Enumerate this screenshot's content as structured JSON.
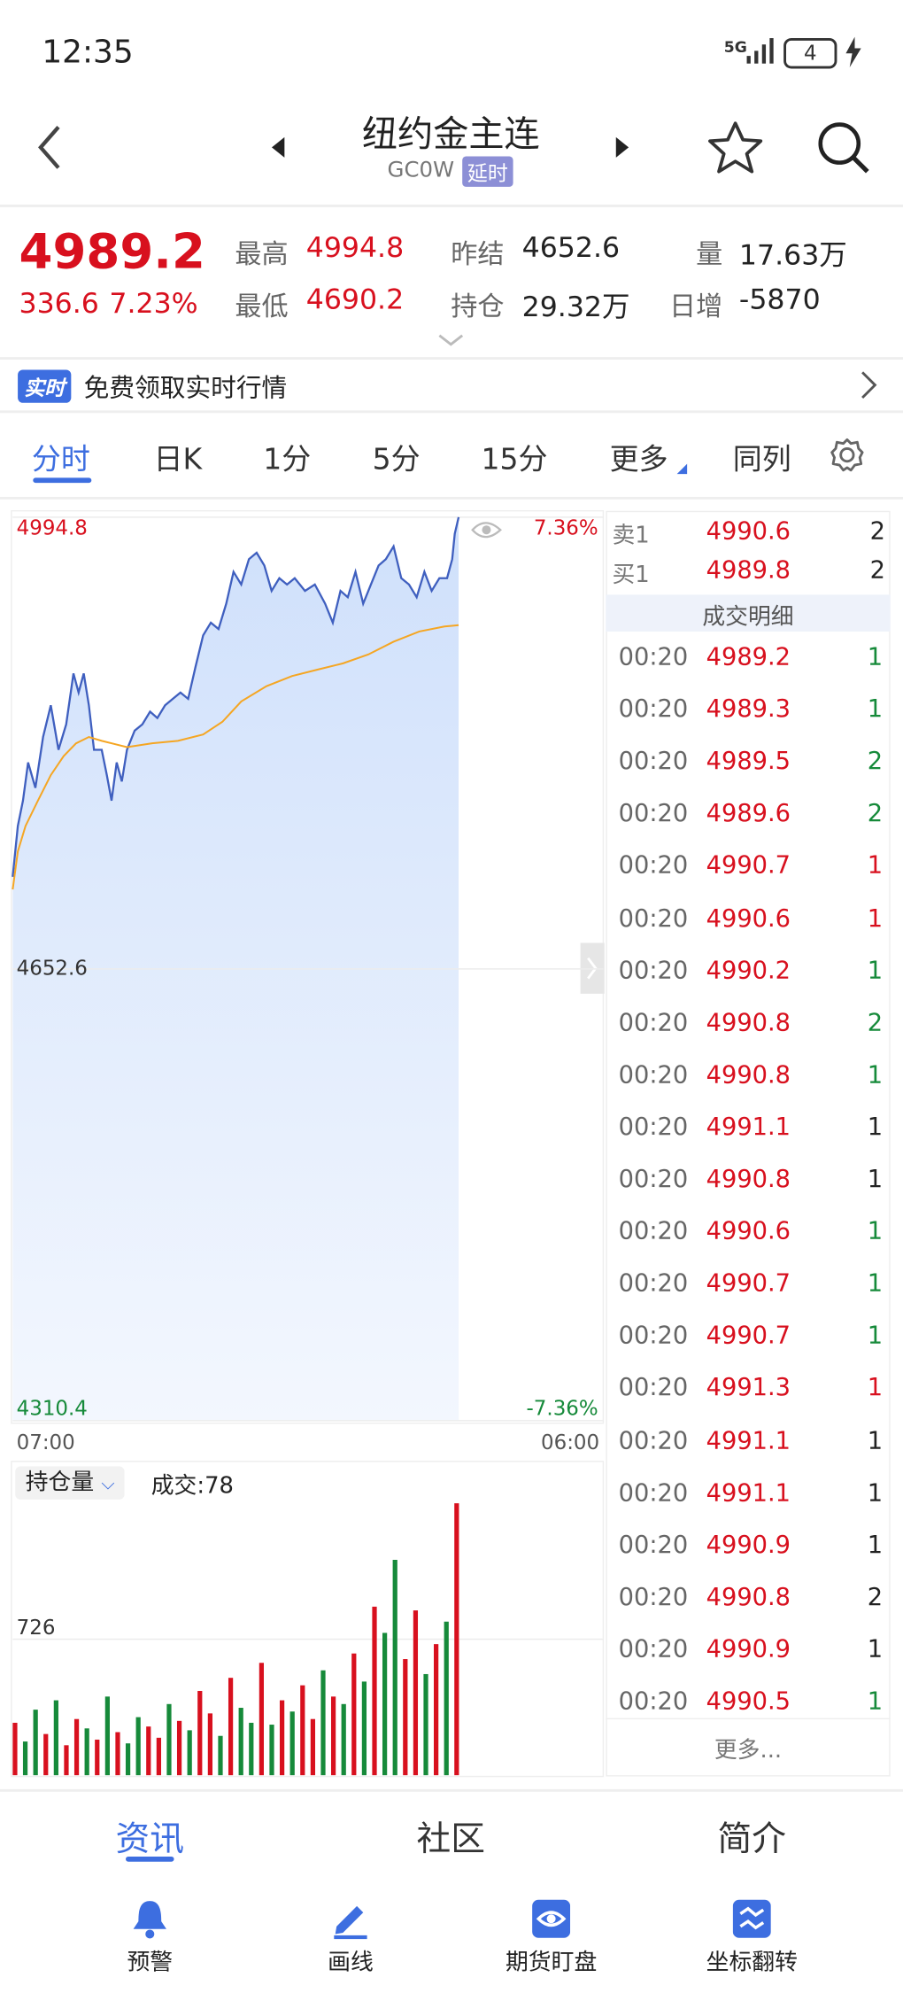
{
  "status_bar": {
    "time": "12:35",
    "network": "5G",
    "battery": "4"
  },
  "header": {
    "title": "纽约金主连",
    "code": "GC0W",
    "badge": "延时"
  },
  "quote": {
    "price": "4989.2",
    "change": "336.6",
    "change_pct": "7.23%",
    "stats": [
      {
        "label": "最高",
        "value": "4994.8"
      },
      {
        "label": "最低",
        "value": "4690.2"
      },
      {
        "label": "昨结",
        "value": "4652.6"
      },
      {
        "label": "持仓",
        "value": "29.32万"
      },
      {
        "label": "量",
        "value": "17.63万"
      },
      {
        "label": "日增",
        "value": "-5870"
      }
    ]
  },
  "banner": {
    "badge": "实时",
    "text": "免费领取实时行情"
  },
  "tabs": [
    "分时",
    "日K",
    "1分",
    "5分",
    "15分",
    "更多",
    "同列"
  ],
  "chart": {
    "type": "line",
    "xlim": [
      0,
      1380
    ],
    "xticks": [
      {
        "value": 0,
        "label": "07:00"
      },
      {
        "value": 1380,
        "label": "06:00"
      }
    ],
    "ylim": [
      4310.4,
      4994.8
    ],
    "yticks": [
      4994.8,
      4652.6,
      4310.4
    ],
    "y2lim": [
      -7.36,
      7.36
    ],
    "y2ticks": [
      {
        "value": 7.36,
        "label": "7.36%"
      },
      {
        "value": -7.36,
        "label": "-7.36%"
      }
    ],
    "series": [
      {
        "color": "#3f5fbf",
        "x": [
          0,
          12,
          24,
          36,
          53,
          71,
          89,
          107,
          125,
          142,
          154,
          166,
          178,
          190,
          208,
          220,
          231,
          243,
          255,
          267,
          285,
          303,
          321,
          338,
          356,
          374,
          392,
          410,
          427,
          445,
          463,
          481,
          499,
          516,
          534,
          552,
          570,
          588,
          605,
          623,
          641,
          659,
          683,
          706,
          730,
          748,
          766,
          783,
          801,
          819,
          837,
          855,
          872,
          890,
          908,
          926,
          944,
          962,
          979,
          997,
          1015,
          1027,
          1033,
          1042
        ],
        "values": [
          4722.4,
          4760.9,
          4780.1,
          4809.0,
          4789.8,
          4828.3,
          4852.3,
          4818.6,
          4837.9,
          4876.4,
          4862.0,
          4876.4,
          4852.3,
          4818.6,
          4818.6,
          4799.4,
          4780.1,
          4809.0,
          4794.6,
          4818.6,
          4833.1,
          4837.9,
          4847.5,
          4842.7,
          4852.3,
          4857.2,
          4862.0,
          4857.2,
          4881.2,
          4905.3,
          4914.9,
          4910.1,
          4929.3,
          4953.4,
          4943.8,
          4963.0,
          4967.9,
          4958.2,
          4939.0,
          4948.6,
          4943.8,
          4948.6,
          4939.0,
          4943.8,
          4929.3,
          4914.9,
          4939.0,
          4934.2,
          4953.4,
          4929.3,
          4943.8,
          4958.2,
          4963.0,
          4972.7,
          4948.6,
          4943.8,
          4934.2,
          4953.4,
          4939.0,
          4948.6,
          4948.6,
          4963.0,
          4982.3,
          4994.8
        ]
      },
      {
        "color": "#f5a623",
        "x": [
          0,
          12,
          30,
          59,
          89,
          119,
          148,
          178,
          208,
          267,
          326,
          386,
          445,
          490,
          534,
          593,
          653,
          712,
          772,
          831,
          890,
          950,
          1009,
          1042
        ],
        "values": [
          4712.8,
          4741.6,
          4760.9,
          4780.1,
          4799.4,
          4813.8,
          4823.5,
          4828.3,
          4825.4,
          4820.6,
          4823.5,
          4825.4,
          4830.2,
          4839.8,
          4855.2,
          4866.8,
          4874.5,
          4879.3,
          4884.1,
          4890.8,
          4900.5,
          4908.2,
          4912.0,
          4913.0
        ]
      }
    ]
  },
  "volume_chart": {
    "type": "bar",
    "selector": "持仓量",
    "label": "成交:78",
    "ylim": [
      0,
      1452
    ],
    "yticks": [
      726
    ],
    "x": [
      0,
      24,
      48,
      72,
      96,
      120,
      144,
      168,
      192,
      216,
      240,
      264,
      288,
      312,
      336,
      360,
      384,
      408,
      432,
      456,
      480,
      504,
      528,
      552,
      576,
      600,
      624,
      648,
      672,
      696,
      720,
      744,
      768,
      792,
      816,
      840,
      864,
      888,
      912,
      936,
      960,
      984,
      1008,
      1032
    ],
    "values": [
      280,
      180,
      350,
      220,
      400,
      160,
      300,
      250,
      190,
      420,
      230,
      170,
      310,
      260,
      200,
      380,
      290,
      240,
      450,
      330,
      210,
      520,
      360,
      280,
      600,
      270,
      400,
      340,
      480,
      300,
      560,
      420,
      380,
      650,
      500,
      900,
      760,
      1150,
      620,
      880,
      540,
      700,
      820,
      1452
    ],
    "colors": [
      "#d8101e",
      "#168a3a",
      "#168a3a",
      "#d8101e",
      "#168a3a",
      "#d8101e",
      "#d8101e",
      "#168a3a",
      "#d8101e",
      "#168a3a",
      "#d8101e",
      "#168a3a",
      "#168a3a",
      "#d8101e",
      "#d8101e",
      "#168a3a",
      "#d8101e",
      "#168a3a",
      "#d8101e",
      "#d8101e",
      "#168a3a",
      "#d8101e",
      "#168a3a",
      "#168a3a",
      "#d8101e",
      "#168a3a",
      "#d8101e",
      "#168a3a",
      "#d8101e",
      "#d8101e",
      "#168a3a",
      "#d8101e",
      "#168a3a",
      "#d8101e",
      "#168a3a",
      "#d8101e",
      "#168a3a",
      "#168a3a",
      "#d8101e",
      "#d8101e",
      "#168a3a",
      "#d8101e",
      "#168a3a",
      "#d8101e"
    ]
  },
  "order_book": [
    {
      "side": "卖1",
      "price": "4990.6",
      "volume": "2"
    },
    {
      "side": "买1",
      "price": "4989.8",
      "volume": "2"
    }
  ],
  "trades_title": "成交明细",
  "trades": [
    {
      "time": "00:20",
      "price": "4989.2",
      "volume": "1",
      "color": "#168a3a"
    },
    {
      "time": "00:20",
      "price": "4989.3",
      "volume": "1",
      "color": "#168a3a"
    },
    {
      "time": "00:20",
      "price": "4989.5",
      "volume": "2",
      "color": "#168a3a"
    },
    {
      "time": "00:20",
      "price": "4989.6",
      "volume": "2",
      "color": "#168a3a"
    },
    {
      "time": "00:20",
      "price": "4990.7",
      "volume": "1",
      "color": "#d8101e"
    },
    {
      "time": "00:20",
      "price": "4990.6",
      "volume": "1",
      "color": "#d8101e"
    },
    {
      "time": "00:20",
      "price": "4990.2",
      "volume": "1",
      "color": "#168a3a"
    },
    {
      "time": "00:20",
      "price": "4990.8",
      "volume": "2",
      "color": "#168a3a"
    },
    {
      "time": "00:20",
      "price": "4990.8",
      "volume": "1",
      "color": "#168a3a"
    },
    {
      "time": "00:20",
      "price": "4991.1",
      "volume": "1",
      "color": "#222222"
    },
    {
      "time": "00:20",
      "price": "4990.8",
      "volume": "1",
      "color": "#222222"
    },
    {
      "time": "00:20",
      "price": "4990.6",
      "volume": "1",
      "color": "#168a3a"
    },
    {
      "time": "00:20",
      "price": "4990.7",
      "volume": "1",
      "color": "#168a3a"
    },
    {
      "time": "00:20",
      "price": "4990.7",
      "volume": "1",
      "color": "#168a3a"
    },
    {
      "time": "00:20",
      "price": "4991.3",
      "volume": "1",
      "color": "#d8101e"
    },
    {
      "time": "00:20",
      "price": "4991.1",
      "volume": "1",
      "color": "#222222"
    },
    {
      "time": "00:20",
      "price": "4991.1",
      "volume": "1",
      "color": "#222222"
    },
    {
      "time": "00:20",
      "price": "4990.9",
      "volume": "1",
      "color": "#222222"
    },
    {
      "time": "00:20",
      "price": "4990.8",
      "volume": "2",
      "color": "#222222"
    },
    {
      "time": "00:20",
      "price": "4990.9",
      "volume": "1",
      "color": "#222222"
    },
    {
      "time": "00:20",
      "price": "4990.5",
      "volume": "1",
      "color": "#168a3a"
    }
  ],
  "more": "更多...",
  "content_tabs": [
    "资讯",
    "社区",
    "简介"
  ],
  "bottom_nav": [
    "预警",
    "画线",
    "期货盯盘",
    "坐标翻转"
  ]
}
